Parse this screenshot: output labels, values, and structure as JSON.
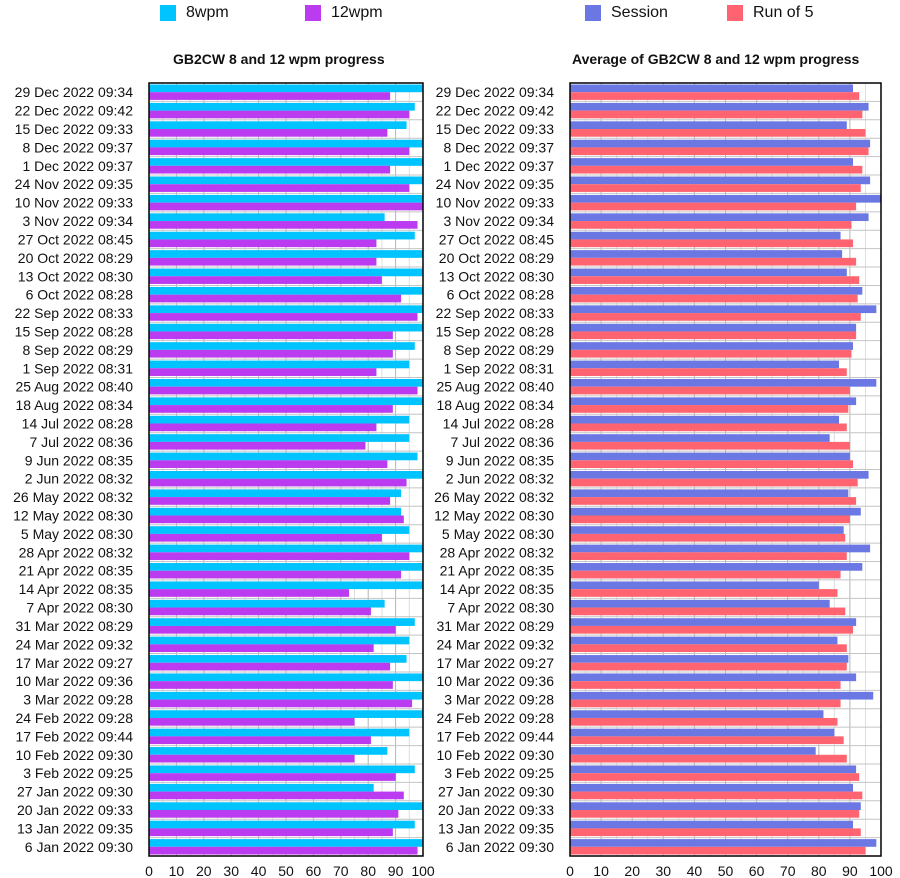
{
  "chart_data": [
    {
      "type": "bar",
      "orientation": "horizontal",
      "title": "GB2CW 8 and 12 wpm progress",
      "xlabel": "",
      "ylabel": "",
      "xlim": [
        0,
        100
      ],
      "xticks": [
        0,
        10,
        20,
        30,
        40,
        50,
        60,
        70,
        80,
        90,
        100
      ],
      "grid": true,
      "legend_position": "top",
      "categories": [
        "29 Dec 2022 09:34",
        "22 Dec 2022 09:42",
        "15 Dec 2022 09:33",
        "8 Dec 2022 09:37",
        "1 Dec 2022 09:37",
        "24 Nov 2022 09:35",
        "10 Nov 2022 09:33",
        "3 Nov 2022 09:34",
        "27 Oct 2022 08:45",
        "20 Oct 2022 08:29",
        "13 Oct 2022 08:30",
        "6 Oct 2022 08:28",
        "22 Sep 2022 08:33",
        "15 Sep 2022 08:28",
        "8 Sep 2022 08:29",
        "1 Sep 2022 08:31",
        "25 Aug 2022 08:40",
        "18 Aug 2022 08:34",
        "14 Jul 2022 08:28",
        "7 Jul 2022 08:36",
        "9 Jun 2022 08:35",
        "2 Jun 2022 08:32",
        "26 May 2022 08:32",
        "12 May 2022 08:30",
        "5 May 2022 08:30",
        "28 Apr 2022 08:32",
        "21 Apr 2022 08:35",
        "14 Apr 2022 08:35",
        "7 Apr 2022 08:30",
        "31 Mar 2022 08:29",
        "24 Mar 2022 09:32",
        "17 Mar 2022 09:27",
        "10 Mar 2022 09:36",
        "3 Mar 2022 09:28",
        "24 Feb 2022 09:28",
        "17 Feb 2022 09:44",
        "10 Feb 2022 09:30",
        "3 Feb 2022 09:25",
        "27 Jan 2022 09:30",
        "20 Jan 2022 09:33",
        "13 Jan 2022 09:35",
        "6 Jan 2022 09:30"
      ],
      "series": [
        {
          "name": "8wpm",
          "color": "#00c4ff",
          "values": [
            100,
            97,
            94,
            100,
            100,
            100,
            100,
            86,
            97,
            100,
            100,
            100,
            100,
            100,
            97,
            95,
            100,
            100,
            95,
            95,
            98,
            100,
            92,
            92,
            95,
            100,
            100,
            100,
            86,
            97,
            95,
            94,
            100,
            100,
            100,
            95,
            87,
            97,
            82,
            100,
            97,
            100
          ]
        },
        {
          "name": "12wpm",
          "color": "#bb3cf0",
          "values": [
            88,
            95,
            87,
            95,
            88,
            95,
            100,
            98,
            83,
            83,
            85,
            92,
            98,
            89,
            89,
            83,
            98,
            89,
            83,
            79,
            87,
            94,
            88,
            93,
            85,
            95,
            92,
            73,
            81,
            90,
            82,
            88,
            89,
            96,
            75,
            81,
            75,
            90,
            93,
            91,
            89,
            98
          ]
        }
      ]
    },
    {
      "type": "bar",
      "orientation": "horizontal",
      "title": "Average of GB2CW 8 and 12 wpm progress",
      "xlabel": "",
      "ylabel": "",
      "xlim": [
        0,
        100
      ],
      "xticks": [
        0,
        10,
        20,
        30,
        40,
        50,
        60,
        70,
        80,
        90,
        100
      ],
      "grid": true,
      "legend_position": "top",
      "categories": [
        "29 Dec 2022 09:34",
        "22 Dec 2022 09:42",
        "15 Dec 2022 09:33",
        "8 Dec 2022 09:37",
        "1 Dec 2022 09:37",
        "24 Nov 2022 09:35",
        "10 Nov 2022 09:33",
        "3 Nov 2022 09:34",
        "27 Oct 2022 08:45",
        "20 Oct 2022 08:29",
        "13 Oct 2022 08:30",
        "6 Oct 2022 08:28",
        "22 Sep 2022 08:33",
        "15 Sep 2022 08:28",
        "8 Sep 2022 08:29",
        "1 Sep 2022 08:31",
        "25 Aug 2022 08:40",
        "18 Aug 2022 08:34",
        "14 Jul 2022 08:28",
        "7 Jul 2022 08:36",
        "9 Jun 2022 08:35",
        "2 Jun 2022 08:32",
        "26 May 2022 08:32",
        "12 May 2022 08:30",
        "5 May 2022 08:30",
        "28 Apr 2022 08:32",
        "21 Apr 2022 08:35",
        "14 Apr 2022 08:35",
        "7 Apr 2022 08:30",
        "31 Mar 2022 08:29",
        "24 Mar 2022 09:32",
        "17 Mar 2022 09:27",
        "10 Mar 2022 09:36",
        "3 Mar 2022 09:28",
        "24 Feb 2022 09:28",
        "17 Feb 2022 09:44",
        "10 Feb 2022 09:30",
        "3 Feb 2022 09:25",
        "27 Jan 2022 09:30",
        "20 Jan 2022 09:33",
        "13 Jan 2022 09:35",
        "6 Jan 2022 09:30"
      ],
      "series": [
        {
          "name": "Session",
          "color": "#6b78e4",
          "values": [
            91,
            96,
            89,
            96.5,
            91,
            96.5,
            100,
            96,
            87,
            87.5,
            89,
            94,
            98.5,
            92,
            91,
            86.5,
            98.5,
            92,
            86.5,
            83.5,
            90,
            96,
            89.5,
            93.5,
            88,
            96.5,
            94,
            80,
            83.5,
            92,
            86,
            89.5,
            92,
            97.5,
            81.5,
            85,
            79,
            92,
            91,
            93.5,
            91,
            98.5
          ]
        },
        {
          "name": "Run of 5",
          "color": "#ff6470",
          "values": [
            93,
            94,
            95,
            96,
            94,
            93.5,
            92,
            90.5,
            91,
            92,
            93,
            92.5,
            93.5,
            92,
            90.5,
            89,
            90,
            89.5,
            89,
            90,
            91,
            92.5,
            92,
            90,
            88.5,
            89,
            87,
            86,
            88.5,
            91,
            89,
            89,
            87,
            87,
            86,
            88,
            89,
            93,
            94,
            93,
            93.5,
            95
          ]
        }
      ]
    }
  ]
}
